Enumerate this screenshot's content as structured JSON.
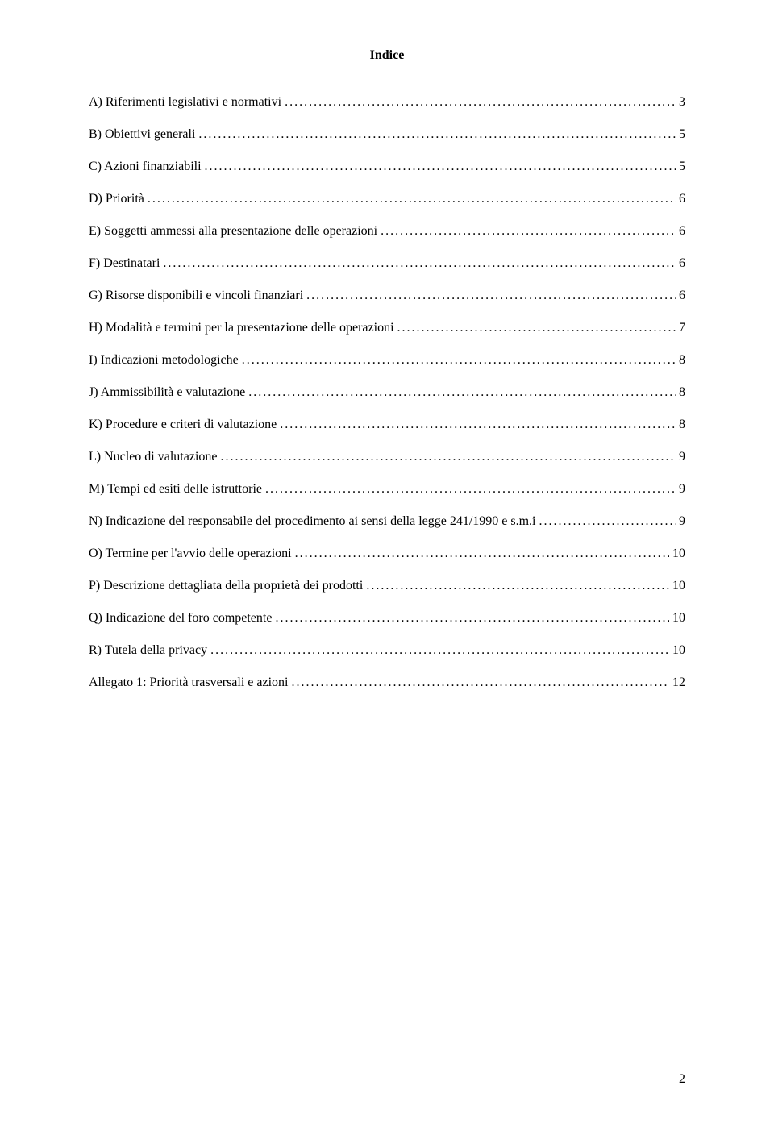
{
  "title": "Indice",
  "toc": [
    {
      "label": "A)   Riferimenti legislativi e normativi",
      "page": "3"
    },
    {
      "label": "B)   Obiettivi generali",
      "page": "5"
    },
    {
      "label": "C)   Azioni finanziabili",
      "page": "5"
    },
    {
      "label": "D)   Priorità",
      "page": "6"
    },
    {
      "label": "E)   Soggetti ammessi alla presentazione delle operazioni",
      "page": "6"
    },
    {
      "label": "F)   Destinatari",
      "page": "6"
    },
    {
      "label": "G)   Risorse disponibili e vincoli finanziari",
      "page": "6"
    },
    {
      "label": "H)   Modalità e termini per la presentazione delle operazioni",
      "page": "7"
    },
    {
      "label": "I)    Indicazioni metodologiche",
      "page": "8"
    },
    {
      "label": "J)    Ammissibilità e valutazione",
      "page": "8"
    },
    {
      "label": "K)   Procedure e criteri di valutazione",
      "page": "8"
    },
    {
      "label": "L)   Nucleo di valutazione",
      "page": "9"
    },
    {
      "label": "M)   Tempi ed esiti delle istruttorie",
      "page": "9"
    },
    {
      "label": "N)   Indicazione del responsabile del procedimento ai sensi della legge 241/1990 e s.m.i",
      "page": "9"
    },
    {
      "label": "O)   Termine per l'avvio delle operazioni",
      "page": "10"
    },
    {
      "label": "P)   Descrizione dettagliata della proprietà dei prodotti",
      "page": "10"
    },
    {
      "label": "Q)   Indicazione del foro competente",
      "page": "10"
    },
    {
      "label": "R)   Tutela della privacy",
      "page": "10"
    },
    {
      "label": "Allegato 1: Priorità trasversali e azioni",
      "page": "12"
    }
  ],
  "pageNumber": "2"
}
